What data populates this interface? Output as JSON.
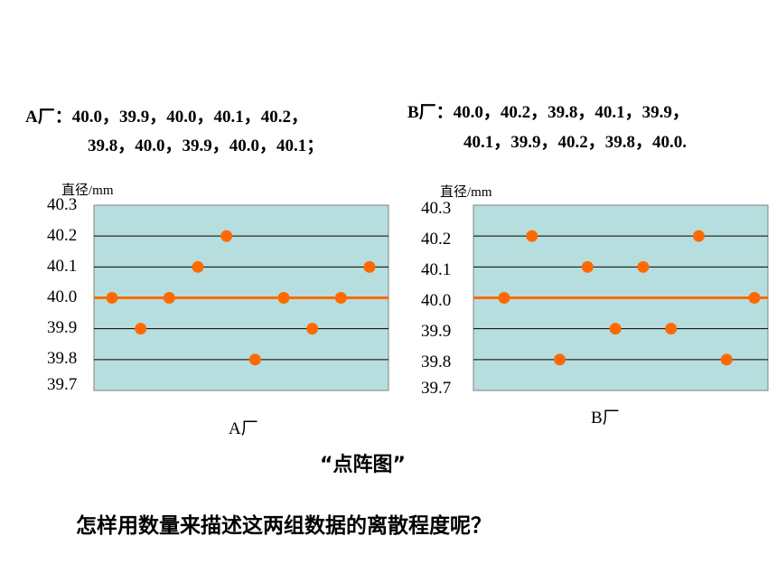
{
  "header": {
    "a_line1": "A厂：40.0，39.9，40.0，40.1，40.2，",
    "a_line2": "39.8，40.0，39.9，40.0，40.1；",
    "b_line1": "B厂：40.0，40.2，39.8，40.1，39.9，",
    "b_line2": "40.1，39.9，40.2，39.8，40.0."
  },
  "chart_data": [
    {
      "type": "scatter",
      "title": "",
      "ylabel": "直径/mm",
      "xlabel": "A厂",
      "ylim": [
        39.7,
        40.3
      ],
      "yticks": [
        "40.3",
        "40.2",
        "40.1",
        "40.0",
        "39.9",
        "39.8",
        "39.7"
      ],
      "values": [
        40.0,
        39.9,
        40.0,
        40.1,
        40.2,
        39.8,
        40.0,
        39.9,
        40.0,
        40.1
      ],
      "mean": 40.0,
      "grid": true,
      "colors": {
        "background": "#b7dede",
        "point": "#ff6a00",
        "mean_line": "#ff6a00"
      }
    },
    {
      "type": "scatter",
      "title": "",
      "ylabel": "直径/mm",
      "xlabel": "B厂",
      "ylim": [
        39.7,
        40.3
      ],
      "yticks": [
        "40.3",
        "40.2",
        "40.1",
        "40.0",
        "39.9",
        "39.8",
        "39.7"
      ],
      "values": [
        40.0,
        40.2,
        39.8,
        40.1,
        39.9,
        40.1,
        39.9,
        40.2,
        39.8,
        40.0
      ],
      "mean": 40.0,
      "grid": true,
      "colors": {
        "background": "#b7dede",
        "point": "#ff6a00",
        "mean_line": "#ff6a00"
      }
    }
  ],
  "caption": "“点阵图”",
  "question": "怎样用数量来描述这两组数据的离散程度呢？"
}
